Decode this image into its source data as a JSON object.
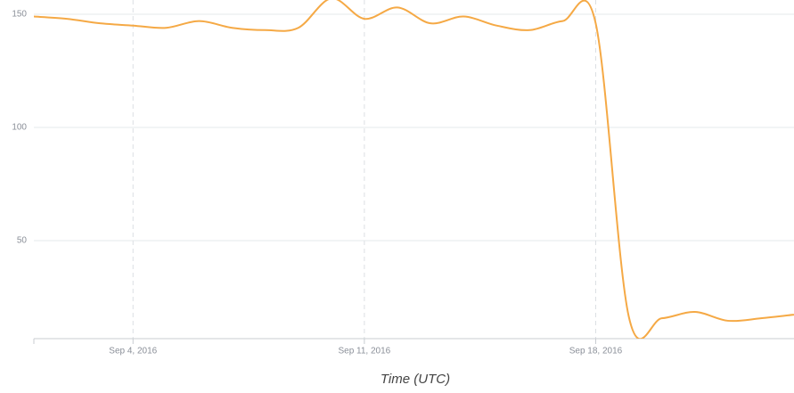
{
  "chart_data": {
    "type": "line",
    "x_label": "Time (UTC)",
    "x": [
      "2016-09-01",
      "2016-09-02",
      "2016-09-03",
      "2016-09-04",
      "2016-09-05",
      "2016-09-06",
      "2016-09-07",
      "2016-09-08",
      "2016-09-09",
      "2016-09-10",
      "2016-09-11",
      "2016-09-12",
      "2016-09-13",
      "2016-09-14",
      "2016-09-15",
      "2016-09-16",
      "2016-09-17",
      "2016-09-18",
      "2016-09-19",
      "2016-09-20",
      "2016-09-21",
      "2016-09-22",
      "2016-09-23",
      "2016-09-24"
    ],
    "series": [
      {
        "color": "#f5a945",
        "values": [
          149,
          148,
          146,
          145,
          144,
          147,
          144,
          143,
          144,
          157,
          148,
          153,
          146,
          149,
          145,
          143,
          147,
          146,
          16.5,
          15.7,
          18.5,
          14.6,
          15.7,
          17.3
        ]
      }
    ],
    "xlim": [
      "2016-09-01",
      "2016-09-24"
    ],
    "xticks": [
      {
        "value": "2016-09-04",
        "label": "Sep 4, 2016"
      },
      {
        "value": "2016-09-11",
        "label": "Sep 11, 2016"
      },
      {
        "value": "2016-09-18",
        "label": "Sep 18, 2016"
      }
    ],
    "ylim": [
      6.7,
      156.3
    ],
    "yticks": [
      50,
      100,
      150
    ],
    "grid": true
  }
}
